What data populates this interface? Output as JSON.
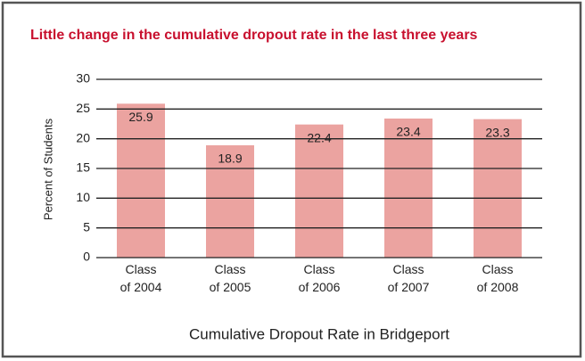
{
  "chart_data": {
    "type": "bar",
    "title": "Little change in the cumulative dropout rate in the last three years",
    "categories": [
      "Class of 2004",
      "Class of 2005",
      "Class of 2006",
      "Class of 2007",
      "Class of 2008"
    ],
    "values": [
      25.9,
      18.9,
      22.4,
      23.4,
      23.3
    ],
    "color": "#eba3a0",
    "y_label": "Percent of Students",
    "x_label": "Cumulative Dropout Rate in Bridgeport",
    "ylim": [
      0,
      30
    ],
    "yticks": [
      0,
      5,
      10,
      15,
      20,
      25,
      30
    ],
    "grid": true
  }
}
